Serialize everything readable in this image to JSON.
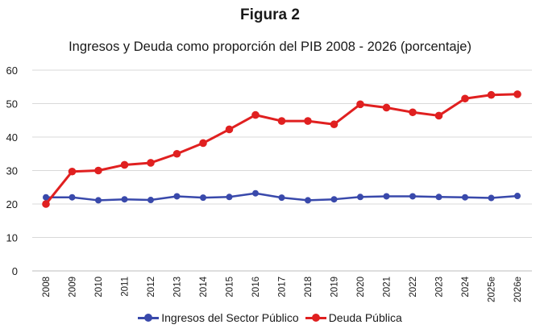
{
  "figure_label": "Figura 2",
  "chart_data": {
    "type": "line",
    "title": "Ingresos y Deuda como proporción del PIB 2008 - 2026 (porcentaje)",
    "xlabel": "",
    "ylabel": "",
    "ylim": [
      0,
      60
    ],
    "yticks": [
      0,
      10,
      20,
      30,
      40,
      50,
      60
    ],
    "grid": true,
    "legend_position": "bottom",
    "categories": [
      "2008",
      "2009",
      "2010",
      "2011",
      "2012",
      "2013",
      "2014",
      "2015",
      "2016",
      "2017",
      "2018",
      "2019",
      "2020",
      "2021",
      "2022",
      "2023",
      "2024",
      "2025e",
      "2026e"
    ],
    "series": [
      {
        "name": "Ingresos del Sector Público",
        "color": "#3949ab",
        "values": [
          22.0,
          22.0,
          21.1,
          21.4,
          21.2,
          22.3,
          21.9,
          22.1,
          23.2,
          21.9,
          21.1,
          21.4,
          22.1,
          22.3,
          22.3,
          22.1,
          22.0,
          21.8,
          22.4
        ]
      },
      {
        "name": "Deuda Pública",
        "color": "#e02020",
        "values": [
          20.0,
          29.7,
          30.0,
          31.7,
          32.3,
          35.0,
          38.2,
          42.3,
          46.6,
          44.8,
          44.8,
          43.8,
          49.8,
          48.8,
          47.4,
          46.4,
          51.5,
          52.6,
          52.8
        ]
      }
    ]
  }
}
